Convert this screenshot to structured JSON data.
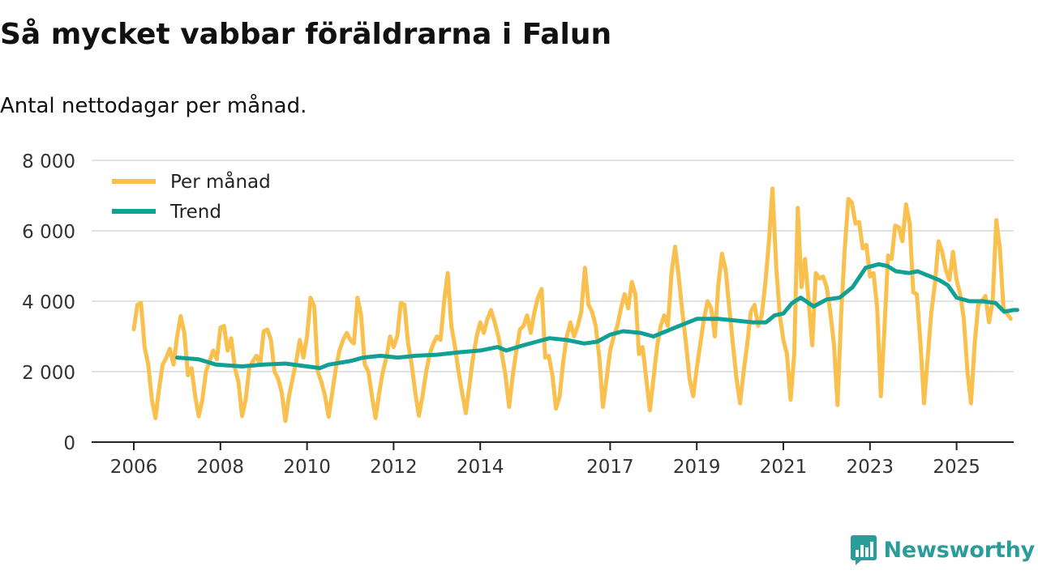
{
  "brand": {
    "name": "Newsworthy"
  },
  "colors": {
    "monthly": "#f9c04d",
    "trend": "#12a095",
    "grid": "#d9d9d9",
    "axis": "#222222"
  },
  "chart_data": {
    "type": "line",
    "title": "Så mycket vabbar föräldrarna i Falun",
    "subtitle": "Antal nettodagar per månad.",
    "xlabel": "",
    "ylabel": "",
    "ylim": [
      0,
      8000
    ],
    "yticks": [
      0,
      2000,
      4000,
      6000,
      8000
    ],
    "ytick_labels": [
      "0",
      "2 000",
      "4 000",
      "6 000",
      "8 000"
    ],
    "xlim": [
      2006,
      2026.3
    ],
    "xticks": [
      2006,
      2008,
      2010,
      2012,
      2014,
      2017,
      2019,
      2021,
      2023,
      2025
    ],
    "xtick_labels": [
      "2006",
      "2008",
      "2010",
      "2012",
      "2014",
      "2017",
      "2019",
      "2021",
      "2023",
      "2025"
    ],
    "legend": {
      "position": "top-left",
      "entries": [
        "Per månad",
        "Trend"
      ]
    },
    "grid": true,
    "series": [
      {
        "name": "Per månad",
        "x_start": 2006,
        "step_months": 1,
        "values": [
          3200,
          3900,
          3950,
          2700,
          2200,
          1200,
          680,
          1500,
          2200,
          2400,
          2650,
          2200,
          3000,
          3580,
          3100,
          1900,
          2100,
          1300,
          730,
          1200,
          2000,
          2300,
          2600,
          2350,
          3250,
          3300,
          2600,
          2950,
          2100,
          1700,
          740,
          1200,
          2100,
          2300,
          2450,
          2200,
          3150,
          3200,
          2900,
          2000,
          1800,
          1400,
          600,
          1300,
          1800,
          2300,
          2900,
          2400,
          3000,
          4100,
          3850,
          2000,
          1700,
          1300,
          720,
          1400,
          2100,
          2600,
          2900,
          3100,
          2900,
          2800,
          4100,
          3600,
          2200,
          2000,
          1300,
          680,
          1400,
          2000,
          2400,
          3000,
          2700,
          3000,
          3950,
          3900,
          2800,
          2200,
          1400,
          750,
          1300,
          2000,
          2500,
          2800,
          3000,
          2900,
          4000,
          4800,
          3300,
          2700,
          2000,
          1400,
          820,
          1600,
          2400,
          3000,
          3400,
          3100,
          3500,
          3750,
          3400,
          3000,
          2500,
          1900,
          1000,
          1900,
          2600,
          3200,
          3300,
          3600,
          3100,
          3700,
          4100,
          4350,
          2400,
          2450,
          1900,
          950,
          1300,
          2300,
          3000,
          3400,
          3000,
          3300,
          3700,
          4950,
          3900,
          3700,
          3300,
          2400,
          1000,
          1800,
          2600,
          3000,
          3300,
          3800,
          4200,
          3800,
          4550,
          4200,
          2500,
          2700,
          1800,
          900,
          1800,
          2700,
          3300,
          3600,
          3300,
          4800,
          5550,
          4700,
          3700,
          2800,
          1800,
          1300,
          2100,
          2800,
          3500,
          4000,
          3800,
          3000,
          4500,
          5350,
          4900,
          3800,
          2800,
          1800,
          1100,
          2000,
          2800,
          3700,
          3900,
          3300,
          3600,
          4500,
          5700,
          7200,
          5000,
          3600,
          2900,
          2500,
          1200,
          2500,
          6650,
          4400,
          5200,
          4000,
          2750,
          4800,
          4650,
          4700,
          4400,
          3700,
          2800,
          1050,
          3600,
          5500,
          6900,
          6800,
          6200,
          6250,
          5500,
          5600,
          4700,
          4800,
          3800,
          1300,
          3200,
          5300,
          5200,
          6150,
          6100,
          5700,
          6750,
          6200,
          4250,
          4200,
          2800,
          1100,
          2400,
          3700,
          4500,
          5700,
          5400,
          4900,
          4600,
          5400,
          4600,
          4200,
          3500,
          2000,
          1100,
          2800,
          3900,
          4000,
          4150,
          3400,
          4000,
          6300,
          5500,
          3800,
          3650,
          3500
        ]
      },
      {
        "name": "Trend",
        "points": [
          [
            2007,
            2400
          ],
          [
            2007.5,
            2350
          ],
          [
            2007.9,
            2200
          ],
          [
            2008.5,
            2150
          ],
          [
            2009,
            2200
          ],
          [
            2009.5,
            2230
          ],
          [
            2010.3,
            2100
          ],
          [
            2010.5,
            2200
          ],
          [
            2011,
            2300
          ],
          [
            2011.3,
            2400
          ],
          [
            2011.7,
            2450
          ],
          [
            2012.1,
            2400
          ],
          [
            2012.5,
            2450
          ],
          [
            2013,
            2480
          ],
          [
            2013.5,
            2550
          ],
          [
            2014,
            2600
          ],
          [
            2014.4,
            2700
          ],
          [
            2014.6,
            2600
          ],
          [
            2015,
            2750
          ],
          [
            2015.3,
            2850
          ],
          [
            2015.6,
            2950
          ],
          [
            2016,
            2900
          ],
          [
            2016.4,
            2800
          ],
          [
            2016.7,
            2850
          ],
          [
            2017,
            3050
          ],
          [
            2017.3,
            3150
          ],
          [
            2017.7,
            3100
          ],
          [
            2018,
            3000
          ],
          [
            2018.5,
            3250
          ],
          [
            2019,
            3500
          ],
          [
            2019.5,
            3500
          ],
          [
            2019.9,
            3450
          ],
          [
            2020.3,
            3400
          ],
          [
            2020.6,
            3400
          ],
          [
            2020.8,
            3600
          ],
          [
            2021,
            3650
          ],
          [
            2021.2,
            3950
          ],
          [
            2021.4,
            4100
          ],
          [
            2021.7,
            3850
          ],
          [
            2022,
            4050
          ],
          [
            2022.3,
            4100
          ],
          [
            2022.6,
            4400
          ],
          [
            2022.9,
            4950
          ],
          [
            2023.2,
            5050
          ],
          [
            2023.4,
            5000
          ],
          [
            2023.6,
            4850
          ],
          [
            2023.9,
            4800
          ],
          [
            2024.1,
            4850
          ],
          [
            2024.3,
            4750
          ],
          [
            2024.6,
            4600
          ],
          [
            2024.8,
            4450
          ],
          [
            2025,
            4100
          ],
          [
            2025.3,
            4000
          ],
          [
            2025.6,
            4000
          ],
          [
            2025.9,
            3950
          ],
          [
            2026.1,
            3700
          ],
          [
            2026.3,
            3750
          ],
          [
            2026.4,
            3750
          ]
        ]
      }
    ]
  }
}
